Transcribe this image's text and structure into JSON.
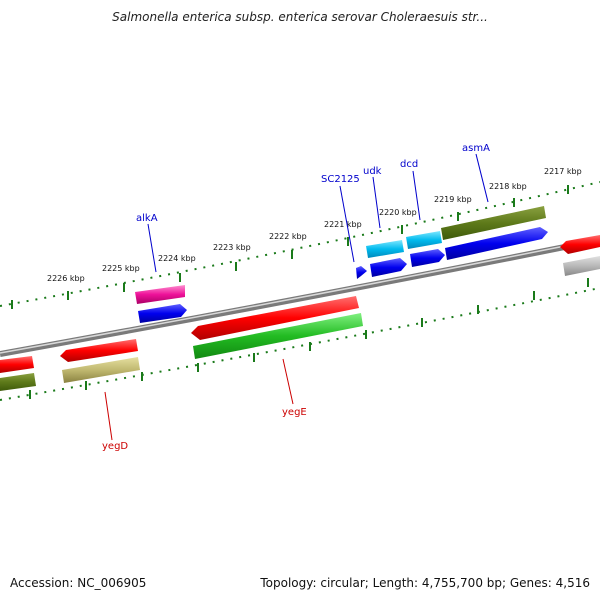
{
  "title": "Salmonella enterica subsp. enterica serovar Choleraesuis str...",
  "footer": {
    "accession": "Accession: NC_006905",
    "summary": "Topology: circular; Length: 4,755,700 bp; Genes: 4,516"
  },
  "colors": {
    "backbone": "#8a8a8a",
    "ticks": "#1a7a1a",
    "label_top": "#0000cc",
    "label_bottom": "#cc0000"
  },
  "scale_labels": [
    "2217 kbp",
    "2218 kbp",
    "2219 kbp",
    "2220 kbp",
    "2221 kbp",
    "2222 kbp",
    "2223 kbp",
    "2224 kbp",
    "2225 kbp",
    "2226 kbp"
  ],
  "gene_labels": {
    "top": [
      "asmA",
      "dcd",
      "udk",
      "SC2125",
      "alkA"
    ],
    "bottom": [
      "yegE",
      "yegD"
    ]
  }
}
